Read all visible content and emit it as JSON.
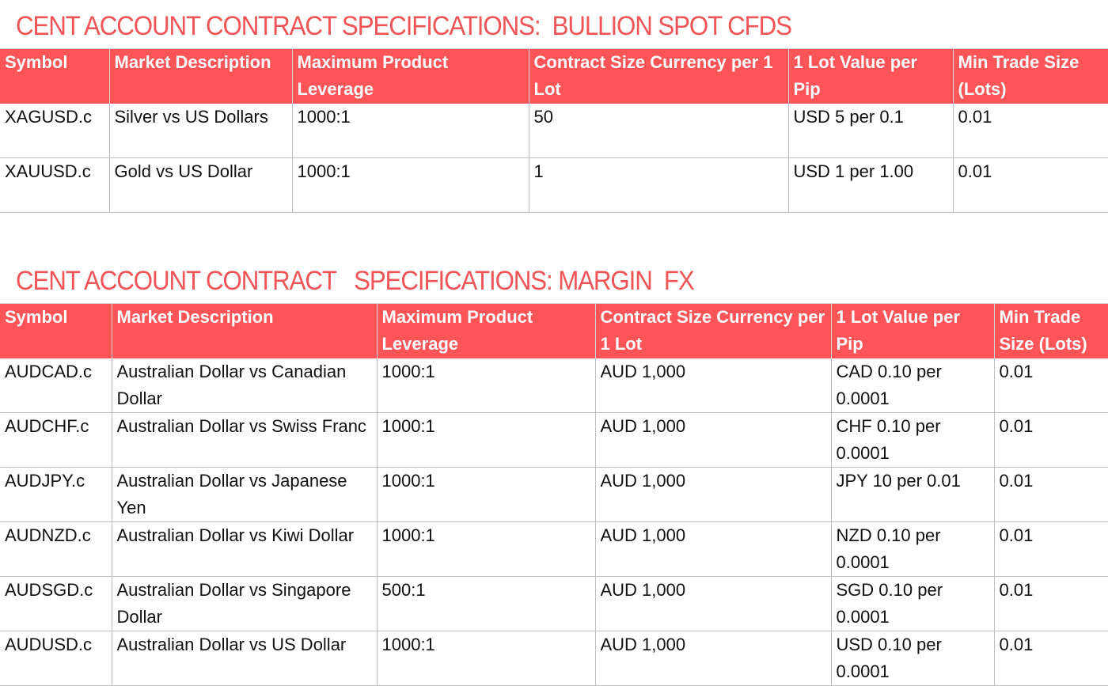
{
  "colors": {
    "accent": "#f15457",
    "header_bg": "#fd5458",
    "header_text": "#ffffff",
    "grid_line": "#bfbfbf"
  },
  "bullion": {
    "title": "CENT ACCOUNT CONTRACT SPECIFICATIONS:  BULLION SPOT CFDS",
    "headers": [
      "Symbol",
      "Market Description",
      "Maximum Product Leverage",
      "Contract Size Currency per 1 Lot",
      "1 Lot Value per Pip",
      "Min Trade Size (Lots)"
    ],
    "rows": [
      [
        "XAGUSD.c",
        "Silver vs US Dollars",
        "1000:1",
        "50",
        "USD 5 per 0.1",
        "0.01"
      ],
      [
        "XAUUSD.c",
        "Gold vs US Dollar",
        "1000:1",
        "1",
        "USD 1  per 1.00",
        "0.01"
      ]
    ]
  },
  "margin_fx": {
    "title": "CENT ACCOUNT CONTRACT   SPECIFICATIONS: MARGIN  FX",
    "headers": [
      "Symbol",
      "Market Description",
      "Maximum Product Leverage",
      "Contract Size Currency per 1 Lot",
      "1 Lot Value per Pip",
      "Min Trade Size (Lots)"
    ],
    "rows": [
      [
        "AUDCAD.c",
        "Australian Dollar vs Canadian Dollar",
        "1000:1",
        "AUD 1,000",
        "CAD 0.10 per 0.0001",
        "0.01"
      ],
      [
        "AUDCHF.c",
        "Australian Dollar vs Swiss Franc",
        "1000:1",
        "AUD 1,000",
        "CHF 0.10 per 0.0001",
        "0.01"
      ],
      [
        "AUDJPY.c",
        "Australian Dollar vs Japanese Yen",
        "1000:1",
        "AUD 1,000",
        "JPY 10 per 0.01",
        "0.01"
      ],
      [
        "AUDNZD.c",
        "Australian Dollar vs Kiwi Dollar",
        "1000:1",
        "AUD 1,000",
        "NZD 0.10 per 0.0001",
        "0.01"
      ],
      [
        "AUDSGD.c",
        "Australian Dollar vs Singapore Dollar",
        "500:1",
        "AUD 1,000",
        "SGD 0.10 per 0.0001",
        "0.01"
      ],
      [
        "AUDUSD.c",
        "Australian Dollar vs US Dollar",
        "1000:1",
        "AUD 1,000",
        "USD 0.10 per 0.0001",
        "0.01"
      ]
    ]
  }
}
